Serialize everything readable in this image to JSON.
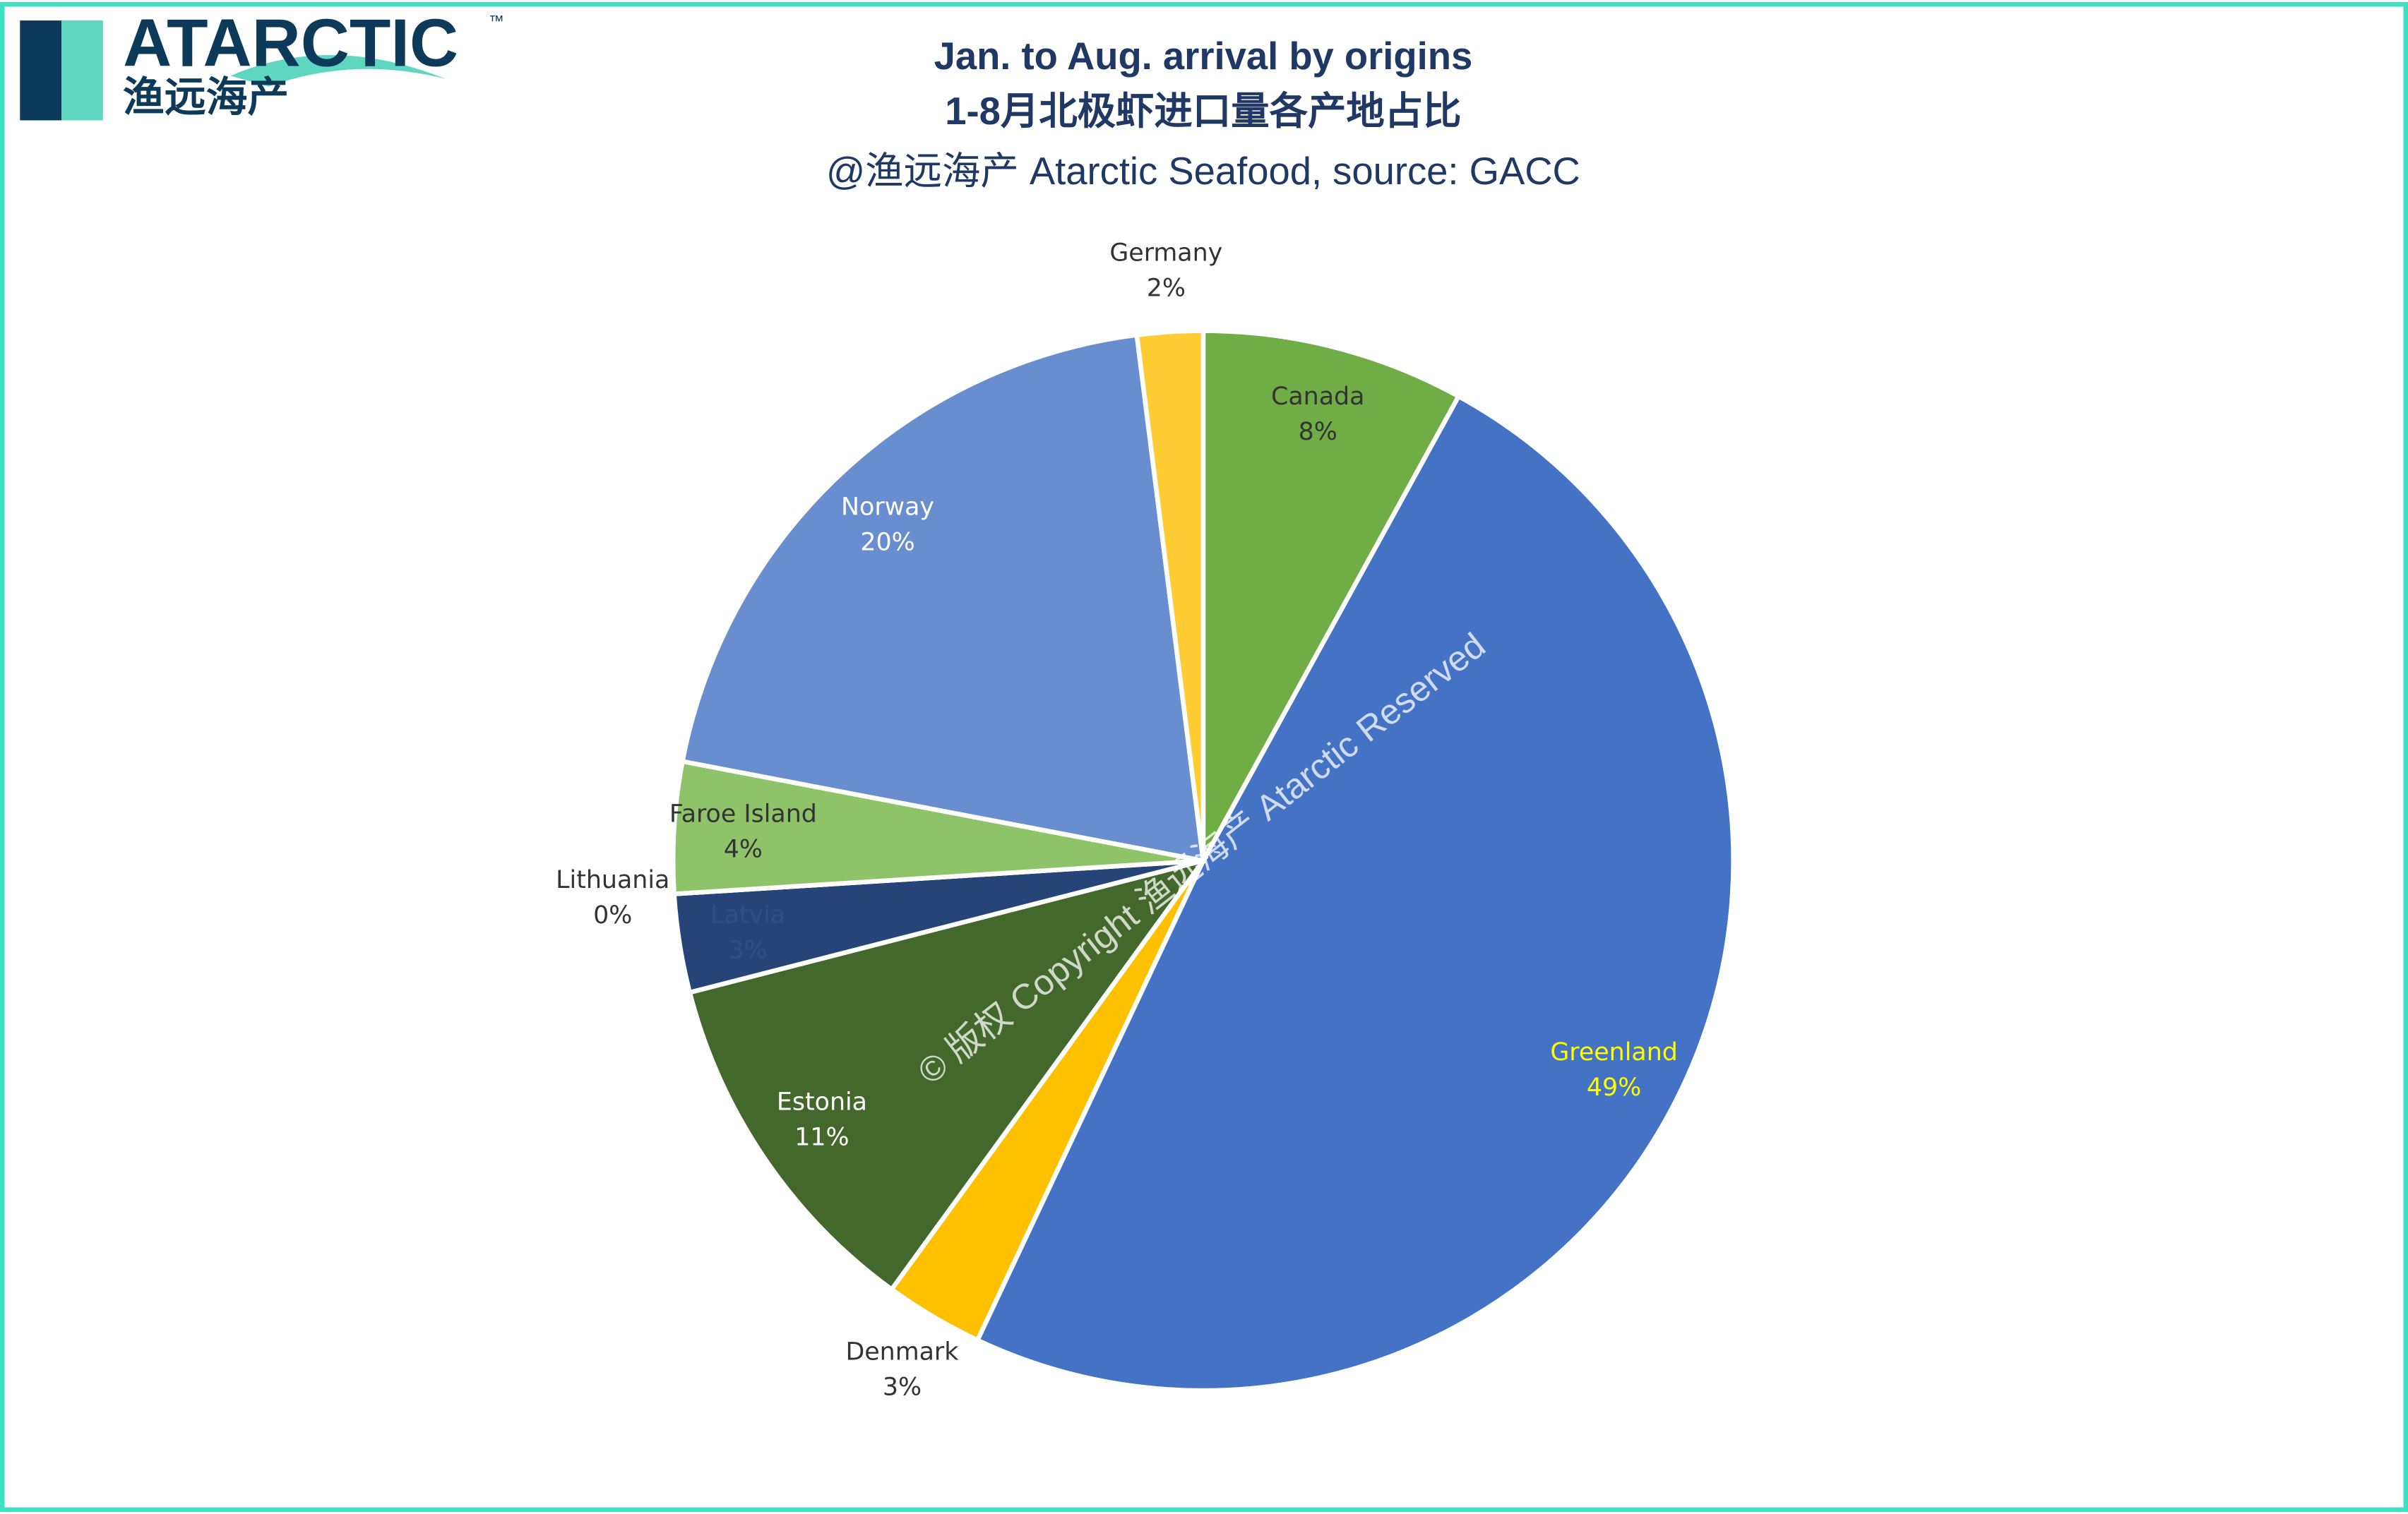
{
  "logo": {
    "brand": "ATARCTIC",
    "trademark": "™",
    "chinese": "渔远海产"
  },
  "watermark": "© 版权 Copyright 渔远海产 Atarctic Reserved",
  "chart_data": {
    "type": "pie",
    "title": "Jan. to Aug. arrival by origins",
    "subtitle": "1-8月北极虾进口量各产地占比",
    "source": "@渔远海产 Atarctic Seafood, source: GACC",
    "categories": [
      "Canada",
      "Greenland",
      "Denmark",
      "Estonia",
      "Latvia",
      "Lithuania",
      "Faroe Island",
      "Norway",
      "Germany"
    ],
    "values": [
      8,
      49,
      3,
      11,
      3,
      0,
      4,
      20,
      2
    ],
    "value_labels": [
      "8%",
      "49%",
      "3%",
      "11%",
      "3%",
      "0%",
      "4%",
      "20%",
      "2%"
    ],
    "colors": [
      "#70ad47",
      "#4472c4",
      "#ffc000",
      "#43682b",
      "#264478",
      "#9e480e",
      "#8fc36a",
      "#698ed0",
      "#ffcd33"
    ],
    "label_positions": [
      "inside",
      "inside",
      "outside",
      "inside",
      "inside",
      "outside",
      "inside",
      "inside",
      "outside"
    ],
    "label_colors": [
      "#333333",
      "#ffff00",
      "#333333",
      "#ffffff",
      "#2f4f80",
      "#333333",
      "#333333",
      "#ffffff",
      "#333333"
    ]
  }
}
